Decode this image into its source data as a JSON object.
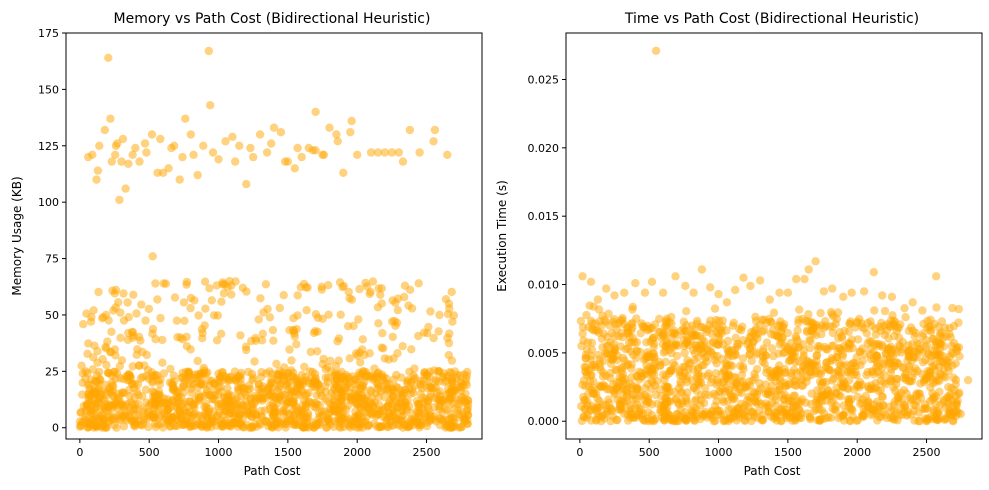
{
  "chart_data": [
    {
      "type": "scatter",
      "title": "Memory vs Path Cost (Bidirectional Heuristic)",
      "xlabel": "Path Cost",
      "ylabel": "Memory Usage (KB)",
      "xlim": [
        -100,
        2900
      ],
      "ylim": [
        -5,
        175
      ],
      "xticks": [
        0,
        500,
        1000,
        1500,
        2000,
        2500
      ],
      "yticks": [
        0,
        25,
        50,
        75,
        100,
        125,
        150,
        175
      ],
      "xtick_labels": [
        "0",
        "500",
        "1000",
        "1500",
        "2000",
        "2500"
      ],
      "ytick_labels": [
        "0",
        "25",
        "50",
        "75",
        "100",
        "125",
        "150",
        "175"
      ],
      "color": "#FFA500",
      "alpha": 0.5,
      "grid": false,
      "series": [
        {
          "x": [
            205,
            930,
            525,
            940,
            310,
            285,
            330,
            255,
            120,
            60,
            90,
            140,
            180,
            220,
            260,
            300,
            350,
            400,
            430,
            470,
            520,
            560,
            600,
            640,
            680,
            720,
            760,
            800,
            850,
            890,
            960,
            1000,
            1050,
            1100,
            1150,
            1200,
            1250,
            1300,
            1350,
            1400,
            1450,
            1500,
            1550,
            1600,
            1650,
            1700,
            1750,
            1800,
            1850,
            1900,
            1960,
            2000,
            2100,
            2150,
            2200,
            2300,
            2380,
            2450,
            2550,
            2650,
            1700,
            1950,
            2560,
            130,
            230,
            270,
            380,
            480,
            580,
            660,
            740,
            820,
            1120,
            1230,
            1380,
            1480,
            1570,
            1680,
            1760,
            1860,
            2250,
            2330
          ],
          "y": [
            164,
            167,
            76,
            143,
            128,
            101,
            106,
            121,
            110,
            120,
            121,
            125,
            132,
            137,
            125,
            118,
            117,
            124,
            118,
            126,
            130,
            113,
            113,
            115,
            125,
            110,
            137,
            130,
            112,
            125,
            122,
            119,
            127,
            129,
            125,
            108,
            120,
            130,
            122,
            133,
            131,
            118,
            115,
            120,
            124,
            140,
            121,
            133,
            130,
            113,
            136,
            121,
            122,
            122,
            122,
            122,
            132,
            122,
            127,
            121,
            123,
            131,
            132,
            114,
            118,
            126,
            121,
            122,
            128,
            124,
            120,
            121,
            118,
            124,
            126,
            118,
            124,
            123,
            121,
            127,
            122,
            118
          ]
        }
      ],
      "dense_band": {
        "x": [
          0,
          2800
        ],
        "y": [
          0,
          25
        ]
      },
      "mid_band": {
        "x": [
          0,
          2700
        ],
        "y": [
          25,
          65
        ]
      }
    },
    {
      "type": "scatter",
      "title": "Time vs Path Cost (Bidirectional Heuristic)",
      "xlabel": "Path Cost",
      "ylabel": "Execution Time (s)",
      "xlim": [
        -100,
        2900
      ],
      "ylim": [
        -0.0013,
        0.0284
      ],
      "xticks": [
        0,
        500,
        1000,
        1500,
        2000,
        2500
      ],
      "yticks": [
        0,
        0.005,
        0.01,
        0.015,
        0.02,
        0.025
      ],
      "xtick_labels": [
        "0",
        "500",
        "1000",
        "1500",
        "2000",
        "2500"
      ],
      "ytick_labels": [
        "0.000",
        "0.005",
        "0.010",
        "0.015",
        "0.020",
        "0.025"
      ],
      "color": "#FFA500",
      "alpha": 0.5,
      "grid": false,
      "series": [
        {
          "x": [
            550,
            1700,
            1650,
            2120,
            2570,
            20,
            80,
            130,
            190,
            250,
            320,
            400,
            470,
            520,
            600,
            690,
            760,
            820,
            880,
            940,
            1000,
            1060,
            1120,
            1180,
            1230,
            1300,
            1370,
            1440,
            1500,
            1560,
            1620,
            1760,
            1820,
            1900,
            1960,
            2050,
            2180,
            2250,
            2400,
            2470,
            2730,
            2800,
            2600,
            2680
          ],
          "y": [
            0.0271,
            0.0117,
            0.0111,
            0.0109,
            0.0106,
            0.0106,
            0.0102,
            0.0089,
            0.0097,
            0.0092,
            0.0094,
            0.0101,
            0.0094,
            0.0102,
            0.0094,
            0.0106,
            0.0099,
            0.0094,
            0.0111,
            0.0098,
            0.0093,
            0.0087,
            0.0096,
            0.0105,
            0.0099,
            0.0103,
            0.0089,
            0.0094,
            0.0094,
            0.0104,
            0.0104,
            0.0095,
            0.0097,
            0.0091,
            0.0094,
            0.0095,
            0.0092,
            0.0091,
            0.0087,
            0.0081,
            0.0006,
            0.003,
            0.0012,
            0.005
          ]
        }
      ],
      "dense_band": {
        "x": [
          0,
          2750
        ],
        "y": [
          0,
          0.0075
        ]
      },
      "mid_band": {
        "x": [
          0,
          2750
        ],
        "y": [
          0.0,
          0.0085
        ]
      }
    }
  ]
}
